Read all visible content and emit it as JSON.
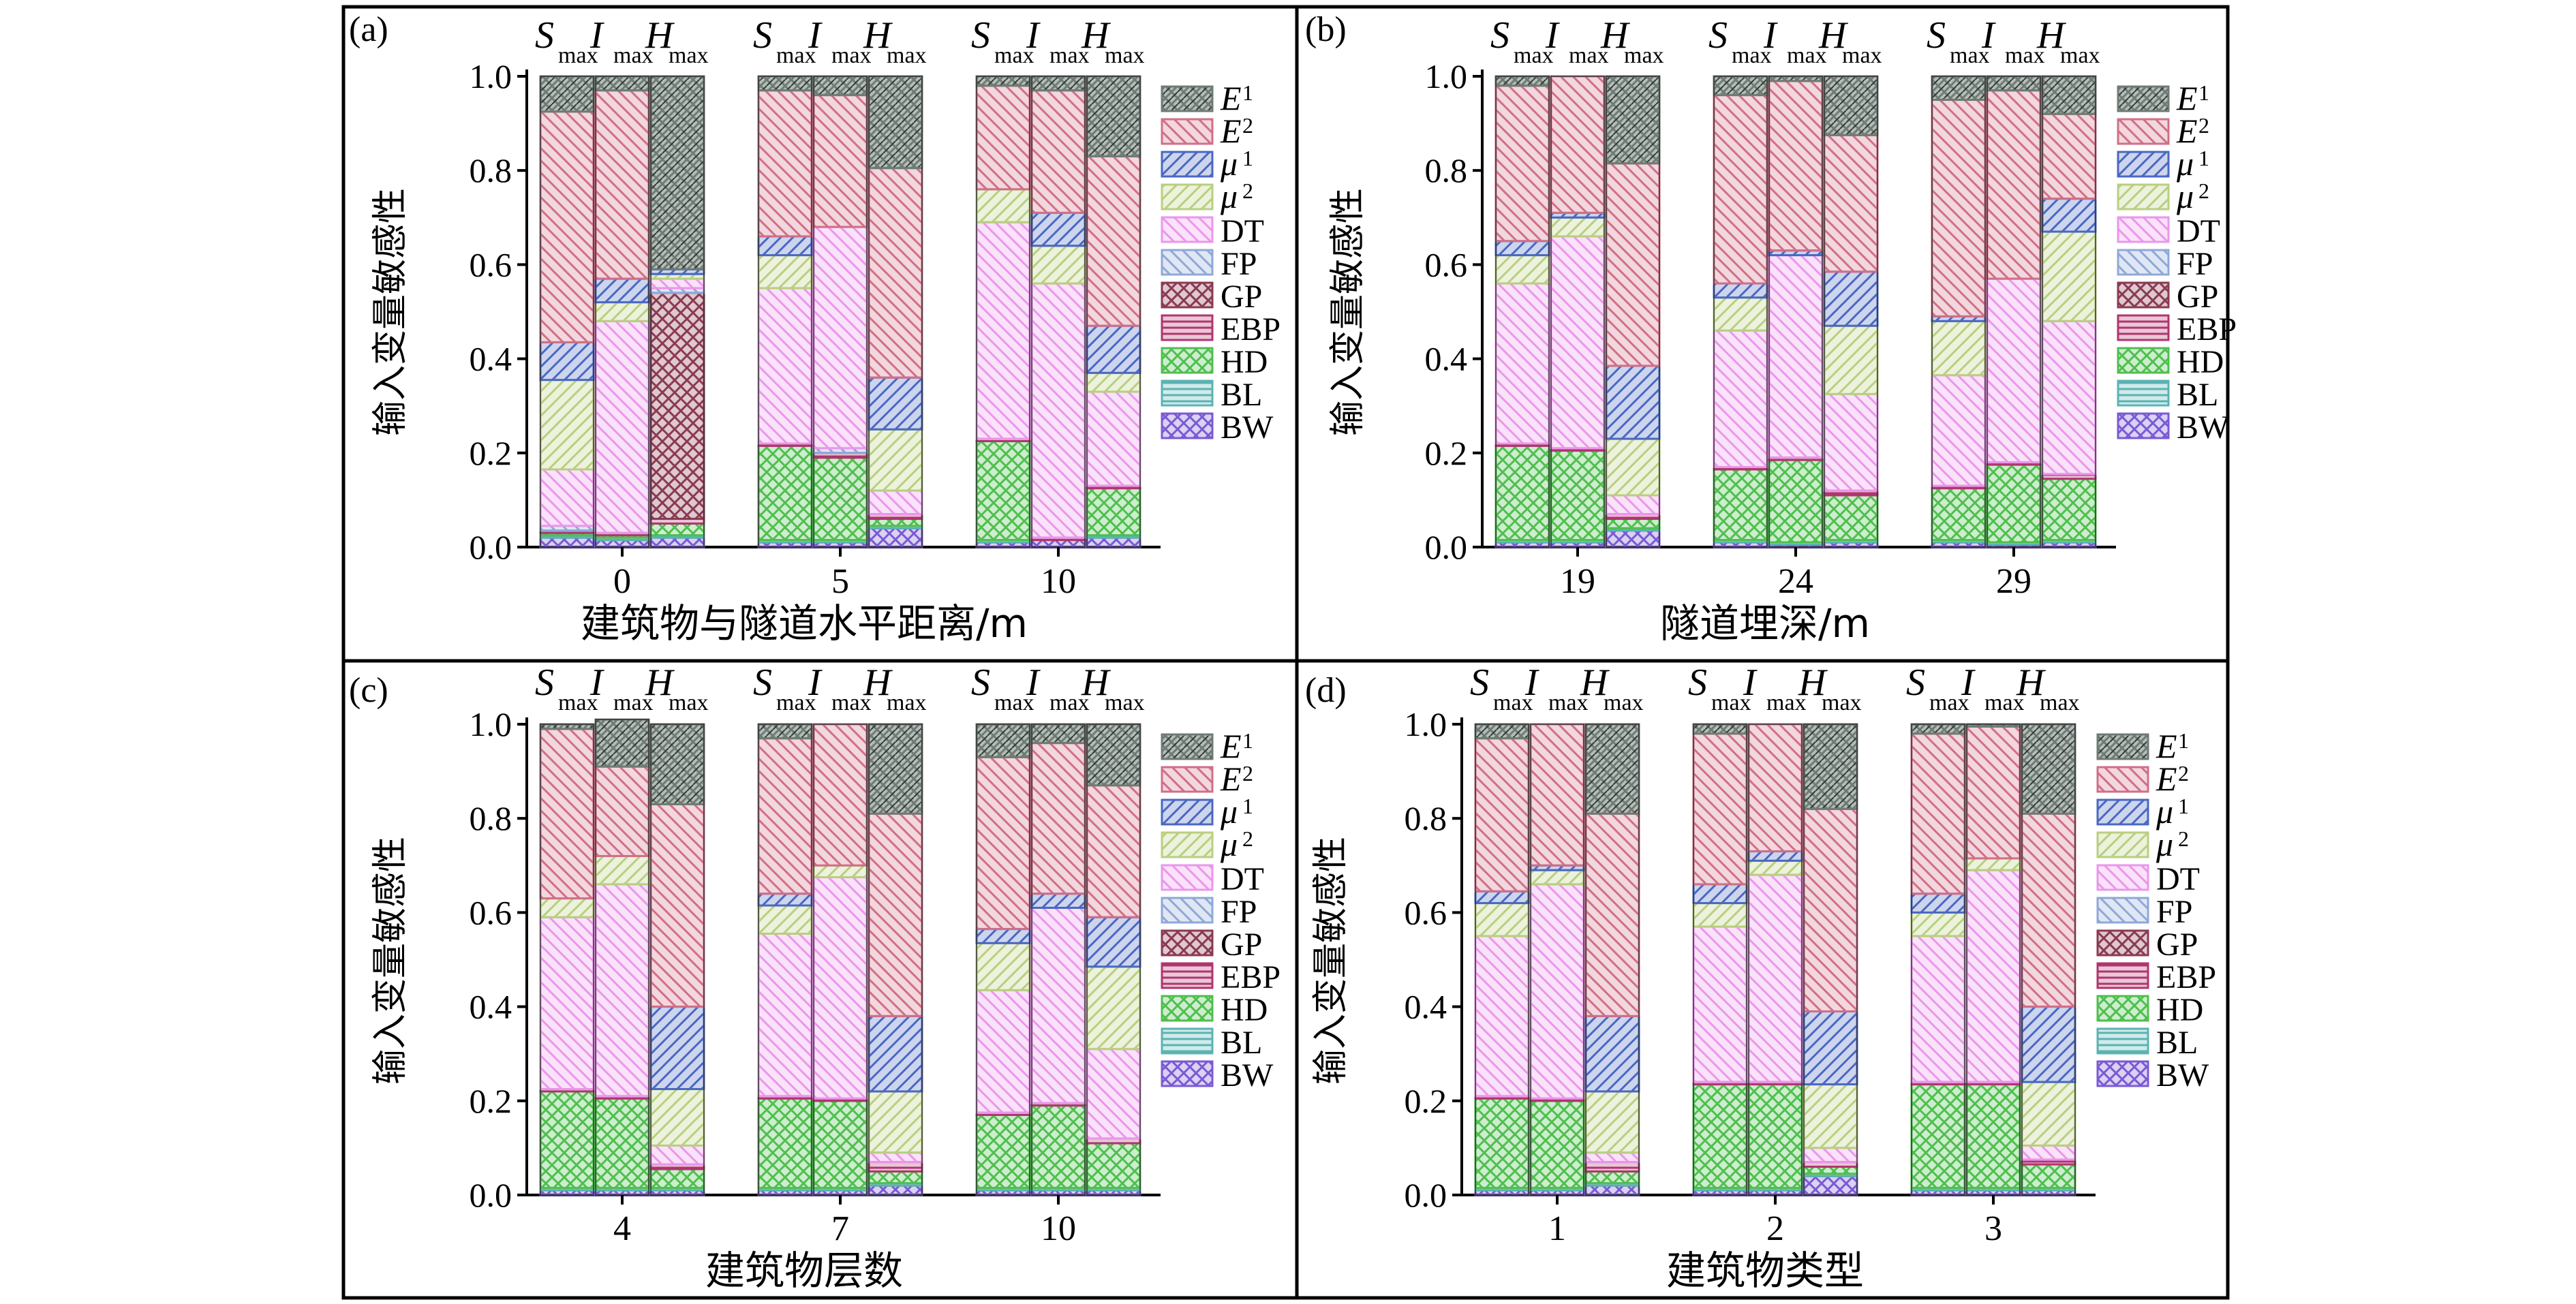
{
  "figure": {
    "y_axis_label": "输入变量敏感性",
    "y_ticks": [
      "0.0",
      "0.2",
      "0.4",
      "0.6",
      "0.8",
      "1.0"
    ],
    "legend": [
      {
        "key": "E1",
        "sym": "E",
        "sub": "1",
        "color": "#6e7b74",
        "pattern": "dense"
      },
      {
        "key": "E2",
        "sym": "E",
        "sub": "2",
        "color": "#d06f86",
        "pattern": "back"
      },
      {
        "key": "mu1",
        "sym": "μ",
        "sub": "1",
        "color": "#4a68c2",
        "pattern": "fwd"
      },
      {
        "key": "mu2",
        "sym": "μ",
        "sub": "2",
        "color": "#b9cf80",
        "pattern": "fwd"
      },
      {
        "key": "DT",
        "label": "DT",
        "color": "#ea97ea",
        "pattern": "back"
      },
      {
        "key": "FP",
        "label": "FP",
        "color": "#8fa8d8",
        "pattern": "back"
      },
      {
        "key": "GP",
        "label": "GP",
        "color": "#8a3a52",
        "pattern": "cross"
      },
      {
        "key": "EBP",
        "label": "EBP",
        "color": "#b0356e",
        "pattern": "horiz"
      },
      {
        "key": "HD",
        "label": "HD",
        "color": "#4fbf4f",
        "pattern": "cross"
      },
      {
        "key": "BL",
        "label": "BL",
        "color": "#5bb3b3",
        "pattern": "horiz"
      },
      {
        "key": "BW",
        "label": "BW",
        "color": "#7a5ad4",
        "pattern": "cross"
      }
    ],
    "bar_header": [
      {
        "sym": "S",
        "sub": "max"
      },
      {
        "sym": "I",
        "sub": "max"
      },
      {
        "sym": "H",
        "sub": "max"
      }
    ]
  },
  "chart_data": [
    {
      "panel": "(a)",
      "type": "bar",
      "stacked": true,
      "title": "",
      "xlabel": "建筑物与隧道水平距离/m",
      "ylabel": "输入变量敏感性",
      "ylim": [
        0,
        1
      ],
      "categories": [
        "0",
        "5",
        "10"
      ],
      "bars_per_category": [
        "Smax",
        "Imax",
        "Hmax"
      ],
      "stack_order": [
        "BW",
        "BL",
        "HD",
        "EBP",
        "GP",
        "FP",
        "DT",
        "mu2",
        "mu1",
        "E2",
        "E1"
      ],
      "values": [
        [
          {
            "BW": 0.02,
            "BL": 0.005,
            "HD": 0.005,
            "EBP": 0.005,
            "GP": 0.0,
            "FP": 0.01,
            "DT": 0.12,
            "mu2": 0.19,
            "mu1": 0.08,
            "E2": 0.49,
            "E1": 0.075
          },
          {
            "BW": 0.015,
            "BL": 0.005,
            "HD": 0.005,
            "EBP": 0.005,
            "GP": 0.0,
            "FP": 0.0,
            "DT": 0.45,
            "mu2": 0.04,
            "mu1": 0.05,
            "E2": 0.4,
            "E1": 0.03
          },
          {
            "BW": 0.02,
            "BL": 0.005,
            "HD": 0.025,
            "EBP": 0.01,
            "GP": 0.48,
            "FP": 0.01,
            "DT": 0.02,
            "mu2": 0.01,
            "mu1": 0.01,
            "E2": 0.0,
            "E1": 0.41
          }
        ],
        [
          {
            "BW": 0.01,
            "BL": 0.005,
            "HD": 0.2,
            "EBP": 0.005,
            "GP": 0.0,
            "FP": 0.0,
            "DT": 0.33,
            "mu2": 0.07,
            "mu1": 0.04,
            "E2": 0.31,
            "E1": 0.03
          },
          {
            "BW": 0.01,
            "BL": 0.005,
            "HD": 0.175,
            "EBP": 0.01,
            "GP": 0.0,
            "FP": 0.01,
            "DT": 0.47,
            "mu2": 0.0,
            "mu1": 0.0,
            "E2": 0.28,
            "E1": 0.04
          },
          {
            "BW": 0.04,
            "BL": 0.005,
            "HD": 0.015,
            "EBP": 0.01,
            "GP": 0.0,
            "FP": 0.0,
            "DT": 0.05,
            "mu2": 0.13,
            "mu1": 0.11,
            "E2": 0.445,
            "E1": 0.195
          }
        ],
        [
          {
            "BW": 0.01,
            "BL": 0.005,
            "HD": 0.21,
            "EBP": 0.005,
            "GP": 0.0,
            "FP": 0.0,
            "DT": 0.46,
            "mu2": 0.07,
            "mu1": 0.0,
            "E2": 0.22,
            "E1": 0.02
          },
          {
            "BW": 0.015,
            "BL": 0.0,
            "HD": 0.0,
            "EBP": 0.005,
            "GP": 0.0,
            "FP": 0.0,
            "DT": 0.54,
            "mu2": 0.08,
            "mu1": 0.07,
            "E2": 0.26,
            "E1": 0.03
          },
          {
            "BW": 0.02,
            "BL": 0.005,
            "HD": 0.1,
            "EBP": 0.005,
            "GP": 0.0,
            "FP": 0.0,
            "DT": 0.2,
            "mu2": 0.04,
            "mu1": 0.1,
            "E2": 0.36,
            "E1": 0.17
          }
        ]
      ]
    },
    {
      "panel": "(b)",
      "type": "bar",
      "stacked": true,
      "title": "",
      "xlabel": "隧道埋深/m",
      "ylabel": "输入变量敏感性",
      "ylim": [
        0,
        1
      ],
      "categories": [
        "19",
        "24",
        "29"
      ],
      "bars_per_category": [
        "Smax",
        "Imax",
        "Hmax"
      ],
      "stack_order": [
        "BW",
        "BL",
        "HD",
        "EBP",
        "GP",
        "FP",
        "DT",
        "mu2",
        "mu1",
        "E2",
        "E1"
      ],
      "values": [
        [
          {
            "BW": 0.01,
            "BL": 0.005,
            "HD": 0.2,
            "EBP": 0.005,
            "GP": 0.0,
            "FP": 0.0,
            "DT": 0.34,
            "mu2": 0.06,
            "mu1": 0.03,
            "E2": 0.33,
            "E1": 0.02
          },
          {
            "BW": 0.01,
            "BL": 0.005,
            "HD": 0.19,
            "EBP": 0.005,
            "GP": 0.0,
            "FP": 0.0,
            "DT": 0.45,
            "mu2": 0.04,
            "mu1": 0.01,
            "E2": 0.29,
            "E1": 0.0
          },
          {
            "BW": 0.035,
            "BL": 0.005,
            "HD": 0.02,
            "EBP": 0.01,
            "GP": 0.0,
            "FP": 0.0,
            "DT": 0.04,
            "mu2": 0.12,
            "mu1": 0.155,
            "E2": 0.43,
            "E1": 0.185
          }
        ],
        [
          {
            "BW": 0.01,
            "BL": 0.005,
            "HD": 0.15,
            "EBP": 0.005,
            "GP": 0.0,
            "FP": 0.0,
            "DT": 0.29,
            "mu2": 0.07,
            "mu1": 0.03,
            "E2": 0.4,
            "E1": 0.04
          },
          {
            "BW": 0.005,
            "BL": 0.005,
            "HD": 0.175,
            "EBP": 0.005,
            "GP": 0.0,
            "FP": 0.0,
            "DT": 0.43,
            "mu2": 0.0,
            "mu1": 0.01,
            "E2": 0.36,
            "E1": 0.01
          },
          {
            "BW": 0.01,
            "BL": 0.005,
            "HD": 0.095,
            "EBP": 0.01,
            "GP": 0.0,
            "FP": 0.0,
            "DT": 0.205,
            "mu2": 0.145,
            "mu1": 0.115,
            "E2": 0.29,
            "E1": 0.125
          }
        ],
        [
          {
            "BW": 0.01,
            "BL": 0.005,
            "HD": 0.11,
            "EBP": 0.005,
            "GP": 0.0,
            "FP": 0.0,
            "DT": 0.235,
            "mu2": 0.115,
            "mu1": 0.01,
            "E2": 0.46,
            "E1": 0.05
          },
          {
            "BW": 0.005,
            "BL": 0.005,
            "HD": 0.165,
            "EBP": 0.005,
            "GP": 0.0,
            "FP": 0.0,
            "DT": 0.39,
            "mu2": 0.0,
            "mu1": 0.0,
            "E2": 0.4,
            "E1": 0.03
          },
          {
            "BW": 0.01,
            "BL": 0.005,
            "HD": 0.13,
            "EBP": 0.01,
            "GP": 0.0,
            "FP": 0.0,
            "DT": 0.325,
            "mu2": 0.19,
            "mu1": 0.07,
            "E2": 0.18,
            "E1": 0.08
          }
        ]
      ]
    },
    {
      "panel": "(c)",
      "type": "bar",
      "stacked": true,
      "title": "",
      "xlabel": "建筑物层数",
      "ylabel": "输入变量敏感性",
      "ylim": [
        0,
        1
      ],
      "categories": [
        "4",
        "7",
        "10"
      ],
      "bars_per_category": [
        "Smax",
        "Imax",
        "Hmax"
      ],
      "stack_order": [
        "BW",
        "BL",
        "HD",
        "EBP",
        "GP",
        "FP",
        "DT",
        "mu2",
        "mu1",
        "E2",
        "E1"
      ],
      "values": [
        [
          {
            "BW": 0.01,
            "BL": 0.005,
            "HD": 0.205,
            "EBP": 0.005,
            "GP": 0.0,
            "FP": 0.0,
            "DT": 0.365,
            "mu2": 0.04,
            "mu1": 0.0,
            "E2": 0.36,
            "E1": 0.01
          },
          {
            "BW": 0.01,
            "BL": 0.005,
            "HD": 0.19,
            "EBP": 0.005,
            "GP": 0.0,
            "FP": 0.0,
            "DT": 0.45,
            "mu2": 0.06,
            "mu1": 0.0,
            "E2": 0.19,
            "E1": 0.1
          },
          {
            "BW": 0.01,
            "BL": 0.005,
            "HD": 0.04,
            "EBP": 0.01,
            "GP": 0.0,
            "FP": 0.0,
            "DT": 0.04,
            "mu2": 0.12,
            "mu1": 0.175,
            "E2": 0.43,
            "E1": 0.17
          }
        ],
        [
          {
            "BW": 0.01,
            "BL": 0.005,
            "HD": 0.19,
            "EBP": 0.005,
            "GP": 0.0,
            "FP": 0.0,
            "DT": 0.345,
            "mu2": 0.06,
            "mu1": 0.025,
            "E2": 0.33,
            "E1": 0.03
          },
          {
            "BW": 0.01,
            "BL": 0.005,
            "HD": 0.185,
            "EBP": 0.005,
            "GP": 0.0,
            "FP": 0.0,
            "DT": 0.47,
            "mu2": 0.025,
            "mu1": 0.0,
            "E2": 0.3,
            "E1": 0.0
          },
          {
            "BW": 0.02,
            "BL": 0.005,
            "HD": 0.025,
            "EBP": 0.02,
            "GP": 0.0,
            "FP": 0.0,
            "DT": 0.02,
            "mu2": 0.13,
            "mu1": 0.16,
            "E2": 0.43,
            "E1": 0.19
          }
        ],
        [
          {
            "BW": 0.01,
            "BL": 0.005,
            "HD": 0.155,
            "EBP": 0.005,
            "GP": 0.0,
            "FP": 0.0,
            "DT": 0.26,
            "mu2": 0.1,
            "mu1": 0.03,
            "E2": 0.365,
            "E1": 0.07
          },
          {
            "BW": 0.01,
            "BL": 0.005,
            "HD": 0.175,
            "EBP": 0.005,
            "GP": 0.0,
            "FP": 0.0,
            "DT": 0.415,
            "mu2": 0.0,
            "mu1": 0.03,
            "E2": 0.32,
            "E1": 0.04
          },
          {
            "BW": 0.01,
            "BL": 0.005,
            "HD": 0.095,
            "EBP": 0.01,
            "GP": 0.0,
            "FP": 0.0,
            "DT": 0.19,
            "mu2": 0.175,
            "mu1": 0.105,
            "E2": 0.28,
            "E1": 0.13
          }
        ]
      ]
    },
    {
      "panel": "(d)",
      "type": "bar",
      "stacked": true,
      "title": "",
      "xlabel": "建筑物类型",
      "ylabel": "输入变量敏感性",
      "ylim": [
        0,
        1
      ],
      "categories": [
        "1",
        "2",
        "3"
      ],
      "bars_per_category": [
        "Smax",
        "Imax",
        "Hmax"
      ],
      "stack_order": [
        "BW",
        "BL",
        "HD",
        "EBP",
        "GP",
        "FP",
        "DT",
        "mu2",
        "mu1",
        "E2",
        "E1"
      ],
      "values": [
        [
          {
            "BW": 0.01,
            "BL": 0.005,
            "HD": 0.19,
            "EBP": 0.005,
            "GP": 0.0,
            "FP": 0.0,
            "DT": 0.34,
            "mu2": 0.07,
            "mu1": 0.025,
            "E2": 0.325,
            "E1": 0.03
          },
          {
            "BW": 0.01,
            "BL": 0.005,
            "HD": 0.185,
            "EBP": 0.005,
            "GP": 0.0,
            "FP": 0.0,
            "DT": 0.455,
            "mu2": 0.03,
            "mu1": 0.01,
            "E2": 0.3,
            "E1": 0.0
          },
          {
            "BW": 0.02,
            "BL": 0.005,
            "HD": 0.025,
            "EBP": 0.02,
            "GP": 0.0,
            "FP": 0.0,
            "DT": 0.02,
            "mu2": 0.13,
            "mu1": 0.16,
            "E2": 0.43,
            "E1": 0.19
          }
        ],
        [
          {
            "BW": 0.01,
            "BL": 0.005,
            "HD": 0.22,
            "EBP": 0.005,
            "GP": 0.0,
            "FP": 0.0,
            "DT": 0.33,
            "mu2": 0.05,
            "mu1": 0.04,
            "E2": 0.32,
            "E1": 0.02
          },
          {
            "BW": 0.01,
            "BL": 0.005,
            "HD": 0.22,
            "EBP": 0.005,
            "GP": 0.0,
            "FP": 0.0,
            "DT": 0.44,
            "mu2": 0.03,
            "mu1": 0.02,
            "E2": 0.27,
            "E1": 0.0
          },
          {
            "BW": 0.04,
            "BL": 0.005,
            "HD": 0.015,
            "EBP": 0.01,
            "GP": 0.0,
            "FP": 0.0,
            "DT": 0.03,
            "mu2": 0.135,
            "mu1": 0.155,
            "E2": 0.43,
            "E1": 0.18
          }
        ],
        [
          {
            "BW": 0.01,
            "BL": 0.005,
            "HD": 0.22,
            "EBP": 0.005,
            "GP": 0.0,
            "FP": 0.0,
            "DT": 0.31,
            "mu2": 0.05,
            "mu1": 0.04,
            "E2": 0.34,
            "E1": 0.02
          },
          {
            "BW": 0.01,
            "BL": 0.005,
            "HD": 0.22,
            "EBP": 0.005,
            "GP": 0.0,
            "FP": 0.0,
            "DT": 0.45,
            "mu2": 0.025,
            "mu1": 0.0,
            "E2": 0.28,
            "E1": 0.005
          },
          {
            "BW": 0.01,
            "BL": 0.005,
            "HD": 0.05,
            "EBP": 0.01,
            "GP": 0.0,
            "FP": 0.0,
            "DT": 0.03,
            "mu2": 0.135,
            "mu1": 0.16,
            "E2": 0.41,
            "E1": 0.19
          }
        ]
      ]
    }
  ]
}
